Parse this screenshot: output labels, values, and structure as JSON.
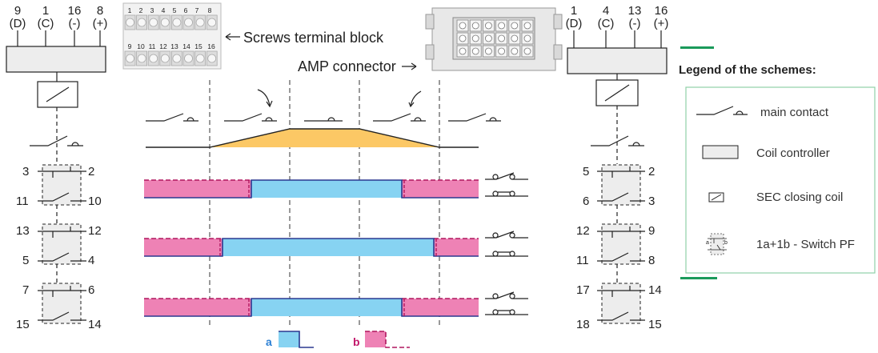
{
  "left_unit": {
    "pins": [
      {
        "num": "9",
        "sub": "(D)"
      },
      {
        "num": "1",
        "sub": "(C)"
      },
      {
        "num": "16",
        "sub": "(-)"
      },
      {
        "num": "8",
        "sub": "(+)"
      }
    ],
    "switches": [
      {
        "top_left": "3",
        "top_right": "2",
        "bottom_left": "11",
        "bottom_right": "10"
      },
      {
        "top_left": "13",
        "top_right": "12",
        "bottom_left": "5",
        "bottom_right": "4"
      },
      {
        "top_left": "7",
        "top_right": "6",
        "bottom_left": "15",
        "bottom_right": "14"
      }
    ]
  },
  "right_unit": {
    "pins": [
      {
        "num": "1",
        "sub": "(D)"
      },
      {
        "num": "4",
        "sub": "(C)"
      },
      {
        "num": "13",
        "sub": "(-)"
      },
      {
        "num": "16",
        "sub": "(+)"
      }
    ],
    "switches": [
      {
        "top_left": "5",
        "top_right": "2",
        "bottom_left": "6",
        "bottom_right": "3"
      },
      {
        "top_left": "12",
        "top_right": "9",
        "bottom_left": "11",
        "bottom_right": "8"
      },
      {
        "top_left": "17",
        "top_right": "14",
        "bottom_left": "18",
        "bottom_right": "15"
      }
    ]
  },
  "terminal_block": {
    "top_row": [
      "1",
      "2",
      "3",
      "4",
      "5",
      "6",
      "7",
      "8"
    ],
    "bottom_row": [
      "9",
      "10",
      "11",
      "12",
      "13",
      "14",
      "15",
      "16"
    ],
    "label": "Screws terminal block"
  },
  "amp_connector": {
    "label": "AMP connector"
  },
  "legend": {
    "title": "Legend of the schemes:",
    "items": [
      {
        "icon": "main-contact-icon",
        "label": "main contact"
      },
      {
        "icon": "coil-controller-icon",
        "label": "Coil controller"
      },
      {
        "icon": "sec-closing-coil-icon",
        "label": "SEC closing coil"
      },
      {
        "icon": "switch-pf-icon",
        "label": "1a+1b - Switch PF",
        "icon_text_a": "a",
        "icon_text_b": "b"
      }
    ]
  },
  "timing": {
    "key_a": "a",
    "key_b": "b",
    "color_a": "#87d3f2",
    "color_b": "#ee82b5",
    "ramp_color": "#fcc865",
    "line_color": "#2b3990"
  }
}
